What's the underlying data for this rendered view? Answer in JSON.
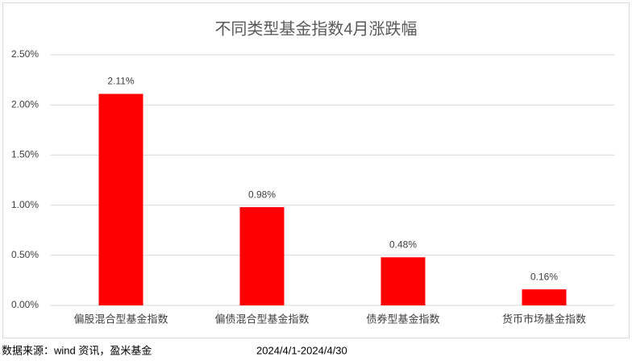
{
  "chart_data": {
    "type": "bar",
    "title": "不同类型基金指数4月涨跌幅",
    "categories": [
      "偏股混合型基金指数",
      "偏债混合型基金指数",
      "债券型基金指数",
      "货币市场基金指数"
    ],
    "values": [
      2.11,
      0.98,
      0.48,
      0.16
    ],
    "value_labels": [
      "2.11%",
      "0.98%",
      "0.48%",
      "0.16%"
    ],
    "color": "#ff0000",
    "ylim": [
      0,
      2.5
    ],
    "yticks": [
      {
        "value": 0,
        "label": "0.00%"
      },
      {
        "value": 0.5,
        "label": "0.50%"
      },
      {
        "value": 1,
        "label": "1.00%"
      },
      {
        "value": 1.5,
        "label": "1.50%"
      },
      {
        "value": 2,
        "label": "2.00%"
      },
      {
        "value": 2.5,
        "label": "2.50%"
      }
    ],
    "grid": true,
    "source": "数据来源：wind 资讯，盈米基金",
    "period": "2024/4/1-2024/4/30"
  }
}
